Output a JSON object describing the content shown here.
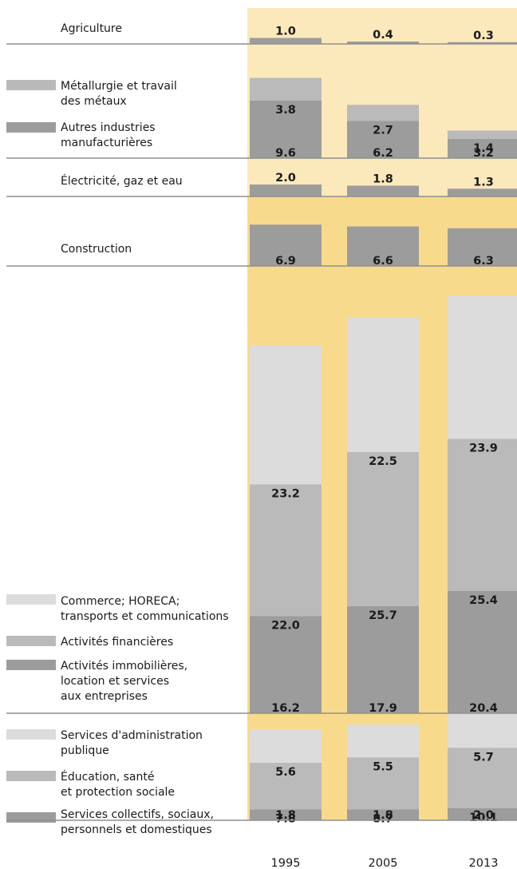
{
  "chart_data": {
    "type": "bar",
    "categories": [
      "1995",
      "2005",
      "2013"
    ],
    "colors": {
      "background_light": "#fbe9bb",
      "background_deep": "#f7da8c",
      "series_dark": "#9c9c9c",
      "series_mid": "#bababa",
      "series_light": "#dcdcdc",
      "separator": "#8f8f8f"
    },
    "groups": [
      {
        "key": "agriculture",
        "series": [
          {
            "name": "Agriculture",
            "values": [
              1.0,
              0.4,
              0.3
            ]
          }
        ]
      },
      {
        "key": "industry",
        "series": [
          {
            "name": "Autres industries manufacturières",
            "values": [
              9.6,
              6.2,
              3.2
            ]
          },
          {
            "name": "Métallurgie et travail des métaux",
            "values": [
              3.8,
              2.7,
              1.4
            ]
          }
        ]
      },
      {
        "key": "energy",
        "series": [
          {
            "name": "Électricité, gaz et eau",
            "values": [
              2.0,
              1.8,
              1.3
            ]
          }
        ]
      },
      {
        "key": "construction",
        "series": [
          {
            "name": "Construction",
            "values": [
              6.9,
              6.6,
              6.3
            ]
          }
        ]
      },
      {
        "key": "market_services",
        "series": [
          {
            "name": "Activités immobilières, location et services aux entreprises",
            "values": [
              16.2,
              17.9,
              20.4
            ]
          },
          {
            "name": "Activités financières",
            "values": [
              22.0,
              25.7,
              25.4
            ]
          },
          {
            "name": "Commerce; HORECA; transports et communications",
            "values": [
              23.2,
              22.5,
              23.9
            ]
          }
        ]
      },
      {
        "key": "public_services",
        "series": [
          {
            "name": "Services collectifs, sociaux, personnels et domestiques",
            "values": [
              1.8,
              1.8,
              2.0
            ]
          },
          {
            "name": "Éducation, santé et protection sociale",
            "values": [
              7.8,
              8.7,
              10.1
            ]
          },
          {
            "name": "Services d'administration publique",
            "values": [
              5.6,
              5.5,
              5.7
            ]
          }
        ]
      }
    ]
  }
}
